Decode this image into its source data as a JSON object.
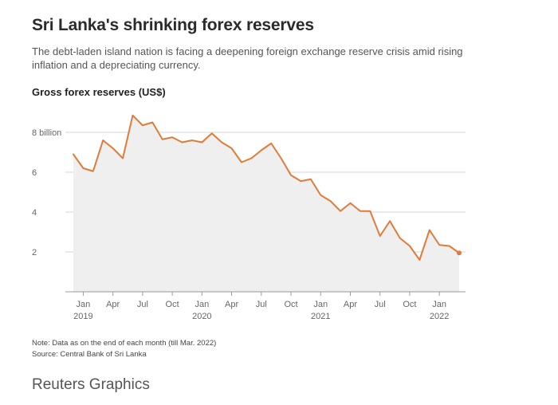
{
  "header": {
    "title": "Sri Lanka's shrinking forex reserves",
    "subtitle": "The debt-laden island nation is facing a deepening foreign exchange reserve crisis amid rising inflation and a depreciating currency."
  },
  "chart_data": {
    "type": "area",
    "title": "Gross forex reserves (US$)",
    "xlabel": "",
    "ylabel": "",
    "ylim": [
      0,
      9
    ],
    "yticks": [
      2,
      4,
      6,
      8
    ],
    "ytick_labels": [
      "2",
      "4",
      "6",
      "8 billion"
    ],
    "x_tick_labels": [
      "Jan",
      "Apr",
      "Jul",
      "Oct",
      "Jan",
      "Apr",
      "Jul",
      "Oct",
      "Jan",
      "Apr",
      "Jul",
      "Oct",
      "Jan"
    ],
    "x_tick_month_index": [
      1,
      4,
      7,
      10,
      13,
      16,
      19,
      22,
      25,
      28,
      31,
      34,
      37
    ],
    "year_labels": [
      "2019",
      "2020",
      "2021",
      "2022"
    ],
    "year_label_month_index": [
      1,
      13,
      25,
      37
    ],
    "series": [
      {
        "name": "Gross forex reserves",
        "color": "#e07b39",
        "x_month_index": [
          0,
          1,
          2,
          3,
          4,
          5,
          6,
          7,
          8,
          9,
          10,
          11,
          12,
          13,
          14,
          15,
          16,
          17,
          18,
          19,
          20,
          21,
          22,
          23,
          24,
          25,
          26,
          27,
          28,
          29,
          30,
          31,
          32,
          33,
          34,
          35,
          36,
          37,
          38,
          39
        ],
        "x_month_labels": [
          "Dec 2018",
          "Jan 2019",
          "Feb 2019",
          "Mar 2019",
          "Apr 2019",
          "May 2019",
          "Jun 2019",
          "Jul 2019",
          "Aug 2019",
          "Sep 2019",
          "Oct 2019",
          "Nov 2019",
          "Dec 2019",
          "Jan 2020",
          "Feb 2020",
          "Mar 2020",
          "Apr 2020",
          "May 2020",
          "Jun 2020",
          "Jul 2020",
          "Aug 2020",
          "Sep 2020",
          "Oct 2020",
          "Nov 2020",
          "Dec 2020",
          "Jan 2021",
          "Feb 2021",
          "Mar 2021",
          "Apr 2021",
          "May 2021",
          "Jun 2021",
          "Jul 2021",
          "Aug 2021",
          "Sep 2021",
          "Oct 2021",
          "Nov 2021",
          "Dec 2021",
          "Jan 2022",
          "Feb 2022",
          "Mar 2022"
        ],
        "values": [
          6.9,
          6.2,
          6.05,
          7.6,
          7.2,
          6.7,
          8.85,
          8.35,
          8.5,
          7.65,
          7.75,
          7.5,
          7.6,
          7.5,
          7.95,
          7.5,
          7.2,
          6.5,
          6.7,
          7.1,
          7.45,
          6.7,
          5.85,
          5.55,
          5.65,
          4.85,
          4.55,
          4.05,
          4.45,
          4.05,
          4.05,
          2.8,
          3.55,
          2.7,
          2.3,
          1.6,
          3.1,
          2.35,
          2.3,
          1.95
        ]
      }
    ]
  },
  "footer": {
    "note": "Note: Data as on the end of each month (till Mar. 2022)",
    "source": "Source: Central Bank of Sri Lanka",
    "credit": "Reuters Graphics"
  }
}
